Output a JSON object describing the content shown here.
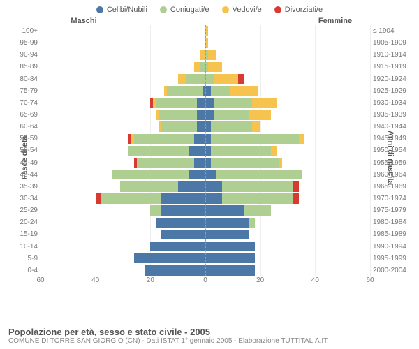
{
  "legend": [
    {
      "label": "Celibi/Nubili",
      "color": "#4b78a6"
    },
    {
      "label": "Coniugati/e",
      "color": "#aecf91"
    },
    {
      "label": "Vedovi/e",
      "color": "#f7c34f"
    },
    {
      "label": "Divorziati/e",
      "color": "#d83a32"
    }
  ],
  "headers": {
    "male": "Maschi",
    "female": "Femmine"
  },
  "axis_labels": {
    "left": "Fasce di età",
    "right": "Anni di nascita"
  },
  "xticks": [
    60,
    40,
    20,
    0,
    20,
    40,
    60
  ],
  "xmax": 60,
  "footer": {
    "title": "Popolazione per età, sesso e stato civile - 2005",
    "sub": "COMUNE DI TORRE SAN GIORGIO (CN) - Dati ISTAT 1° gennaio 2005 - Elaborazione TUTTITALIA.IT"
  },
  "rows": [
    {
      "age": "100+",
      "birth": "≤ 1904",
      "m": [
        0,
        0,
        0,
        0
      ],
      "f": [
        0,
        0,
        1,
        0
      ]
    },
    {
      "age": "95-99",
      "birth": "1905-1909",
      "m": [
        0,
        0,
        0,
        0
      ],
      "f": [
        0,
        0,
        1,
        0
      ]
    },
    {
      "age": "90-94",
      "birth": "1910-1914",
      "m": [
        0,
        0,
        2,
        0
      ],
      "f": [
        0,
        1,
        3,
        0
      ]
    },
    {
      "age": "85-89",
      "birth": "1915-1919",
      "m": [
        0,
        2,
        2,
        0
      ],
      "f": [
        0,
        1,
        5,
        0
      ]
    },
    {
      "age": "80-84",
      "birth": "1920-1924",
      "m": [
        0,
        7,
        3,
        0
      ],
      "f": [
        0,
        3,
        9,
        2
      ]
    },
    {
      "age": "75-79",
      "birth": "1925-1929",
      "m": [
        1,
        13,
        1,
        0
      ],
      "f": [
        2,
        7,
        10,
        0
      ]
    },
    {
      "age": "70-74",
      "birth": "1930-1934",
      "m": [
        3,
        15,
        1,
        1
      ],
      "f": [
        3,
        14,
        9,
        0
      ]
    },
    {
      "age": "65-69",
      "birth": "1935-1939",
      "m": [
        3,
        14,
        1,
        0
      ],
      "f": [
        3,
        13,
        8,
        0
      ]
    },
    {
      "age": "60-64",
      "birth": "1940-1944",
      "m": [
        3,
        13,
        1,
        0
      ],
      "f": [
        2,
        15,
        3,
        0
      ]
    },
    {
      "age": "55-59",
      "birth": "1945-1949",
      "m": [
        4,
        22,
        1,
        1
      ],
      "f": [
        2,
        32,
        2,
        0
      ]
    },
    {
      "age": "50-54",
      "birth": "1950-1954",
      "m": [
        6,
        22,
        0,
        0
      ],
      "f": [
        2,
        22,
        2,
        0
      ]
    },
    {
      "age": "45-49",
      "birth": "1955-1959",
      "m": [
        4,
        21,
        0,
        1
      ],
      "f": [
        2,
        25,
        1,
        0
      ]
    },
    {
      "age": "40-44",
      "birth": "1960-1964",
      "m": [
        6,
        28,
        0,
        0
      ],
      "f": [
        4,
        31,
        0,
        0
      ]
    },
    {
      "age": "35-39",
      "birth": "1965-1969",
      "m": [
        10,
        21,
        0,
        0
      ],
      "f": [
        6,
        26,
        0,
        2
      ]
    },
    {
      "age": "30-34",
      "birth": "1970-1974",
      "m": [
        16,
        22,
        0,
        2
      ],
      "f": [
        6,
        26,
        0,
        2
      ]
    },
    {
      "age": "25-29",
      "birth": "1975-1979",
      "m": [
        16,
        4,
        0,
        0
      ],
      "f": [
        14,
        10,
        0,
        0
      ]
    },
    {
      "age": "20-24",
      "birth": "1980-1984",
      "m": [
        18,
        0,
        0,
        0
      ],
      "f": [
        16,
        2,
        0,
        0
      ]
    },
    {
      "age": "15-19",
      "birth": "1985-1989",
      "m": [
        16,
        0,
        0,
        0
      ],
      "f": [
        16,
        0,
        0,
        0
      ]
    },
    {
      "age": "10-14",
      "birth": "1990-1994",
      "m": [
        20,
        0,
        0,
        0
      ],
      "f": [
        18,
        0,
        0,
        0
      ]
    },
    {
      "age": "5-9",
      "birth": "1995-1999",
      "m": [
        26,
        0,
        0,
        0
      ],
      "f": [
        18,
        0,
        0,
        0
      ]
    },
    {
      "age": "0-4",
      "birth": "2000-2004",
      "m": [
        22,
        0,
        0,
        0
      ],
      "f": [
        18,
        0,
        0,
        0
      ]
    }
  ],
  "colors": {
    "background": "#ffffff",
    "grid": "#eeeeee",
    "centerline": "#999999",
    "text": "#555555",
    "text_dim": "#888888"
  }
}
